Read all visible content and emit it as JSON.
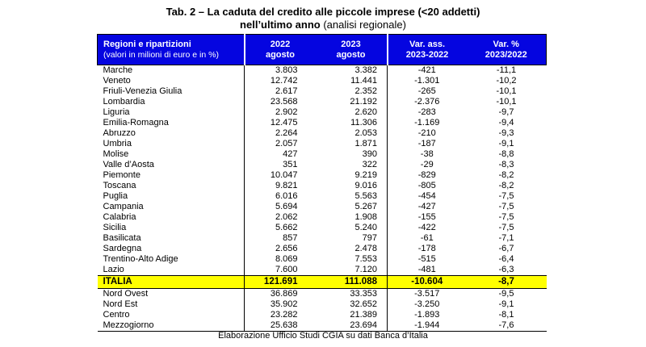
{
  "title": {
    "line1": "Tab. 2 – La caduta del credito alle piccole imprese (<20 addetti)",
    "line2_bold": "nell’ultimo anno",
    "line2_regular": " (analisi regionale)"
  },
  "table": {
    "header": {
      "col1_title": "Regioni e ripartizioni",
      "col1_subtitle": "(valori in milioni di euro e in %)",
      "col2_line1": "2022",
      "col2_line2": "agosto",
      "col3_line1": "2023",
      "col3_line2": "agosto",
      "col4_line1": "Var. ass.",
      "col4_line2": "2023-2022",
      "col5_line1": "Var. %",
      "col5_line2": "2023/2022"
    },
    "regions": [
      {
        "name": "Marche",
        "y2022": "3.803",
        "y2023": "3.382",
        "var_ass": "-421",
        "var_pct": "-11,1"
      },
      {
        "name": "Veneto",
        "y2022": "12.742",
        "y2023": "11.441",
        "var_ass": "-1.301",
        "var_pct": "-10,2"
      },
      {
        "name": "Friuli-Venezia Giulia",
        "y2022": "2.617",
        "y2023": "2.352",
        "var_ass": "-265",
        "var_pct": "-10,1"
      },
      {
        "name": "Lombardia",
        "y2022": "23.568",
        "y2023": "21.192",
        "var_ass": "-2.376",
        "var_pct": "-10,1"
      },
      {
        "name": "Liguria",
        "y2022": "2.902",
        "y2023": "2.620",
        "var_ass": "-283",
        "var_pct": "-9,7"
      },
      {
        "name": "Emilia-Romagna",
        "y2022": "12.475",
        "y2023": "11.306",
        "var_ass": "-1.169",
        "var_pct": "-9,4"
      },
      {
        "name": "Abruzzo",
        "y2022": "2.264",
        "y2023": "2.053",
        "var_ass": "-210",
        "var_pct": "-9,3"
      },
      {
        "name": "Umbria",
        "y2022": "2.057",
        "y2023": "1.871",
        "var_ass": "-187",
        "var_pct": "-9,1"
      },
      {
        "name": "Molise",
        "y2022": "427",
        "y2023": "390",
        "var_ass": "-38",
        "var_pct": "-8,8"
      },
      {
        "name": "Valle d’Aosta",
        "y2022": "351",
        "y2023": "322",
        "var_ass": "-29",
        "var_pct": "-8,3"
      },
      {
        "name": "Piemonte",
        "y2022": "10.047",
        "y2023": "9.219",
        "var_ass": "-829",
        "var_pct": "-8,2"
      },
      {
        "name": "Toscana",
        "y2022": "9.821",
        "y2023": "9.016",
        "var_ass": "-805",
        "var_pct": "-8,2"
      },
      {
        "name": "Puglia",
        "y2022": "6.016",
        "y2023": "5.563",
        "var_ass": "-454",
        "var_pct": "-7,5"
      },
      {
        "name": "Campania",
        "y2022": "5.694",
        "y2023": "5.267",
        "var_ass": "-427",
        "var_pct": "-7,5"
      },
      {
        "name": "Calabria",
        "y2022": "2.062",
        "y2023": "1.908",
        "var_ass": "-155",
        "var_pct": "-7,5"
      },
      {
        "name": "Sicilia",
        "y2022": "5.662",
        "y2023": "5.240",
        "var_ass": "-422",
        "var_pct": "-7,5"
      },
      {
        "name": "Basilicata",
        "y2022": "857",
        "y2023": "797",
        "var_ass": "-61",
        "var_pct": "-7,1"
      },
      {
        "name": "Sardegna",
        "y2022": "2.656",
        "y2023": "2.478",
        "var_ass": "-178",
        "var_pct": "-6,7"
      },
      {
        "name": "Trentino-Alto Adige",
        "y2022": "8.069",
        "y2023": "7.553",
        "var_ass": "-515",
        "var_pct": "-6,4"
      },
      {
        "name": "Lazio",
        "y2022": "7.600",
        "y2023": "7.120",
        "var_ass": "-481",
        "var_pct": "-6,3"
      }
    ],
    "total": {
      "name": "ITALIA",
      "y2022": "121.691",
      "y2023": "111.088",
      "var_ass": "-10.604",
      "var_pct": "-8,7"
    },
    "ripartizioni": [
      {
        "name": "Nord Ovest",
        "y2022": "36.869",
        "y2023": "33.353",
        "var_ass": "-3.517",
        "var_pct": "-9,5"
      },
      {
        "name": "Nord Est",
        "y2022": "35.902",
        "y2023": "32.652",
        "var_ass": "-3.250",
        "var_pct": "-9,1"
      },
      {
        "name": "Centro",
        "y2022": "23.282",
        "y2023": "21.389",
        "var_ass": "-1.893",
        "var_pct": "-8,1"
      },
      {
        "name": "Mezzogiorno",
        "y2022": "25.638",
        "y2023": "23.694",
        "var_ass": "-1.944",
        "var_pct": "-7,6"
      }
    ]
  },
  "footer": "Elaborazione Ufficio Studi CGIA su dati Banca d’Italia",
  "colors": {
    "header_bg": "#0505E0",
    "highlight_bg": "#FFFF00"
  }
}
